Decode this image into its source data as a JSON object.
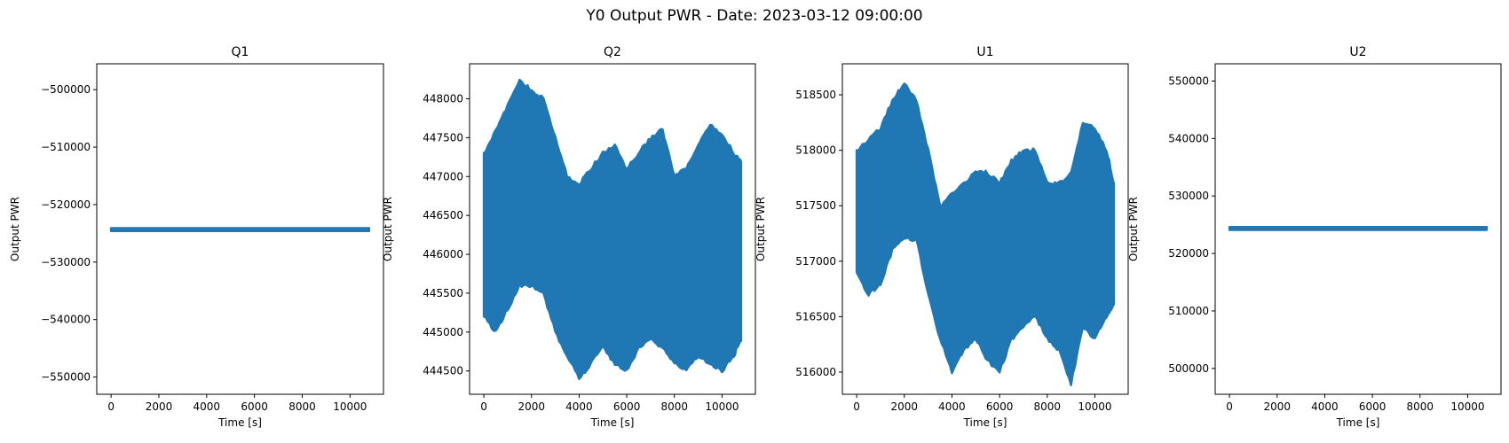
{
  "figure": {
    "title": "Y0 Output PWR - Date: 2023-03-12 09:00:00"
  },
  "colors": {
    "series": "#1f77b4",
    "axis": "#000000",
    "background": "#ffffff"
  },
  "chart_data": [
    {
      "type": "scatter",
      "title": "Q1",
      "xlabel": "Time [s]",
      "ylabel": "Output PWR",
      "marker": "star",
      "xlim": [
        -600,
        11400
      ],
      "ylim": [
        -553000,
        -495500
      ],
      "xticks": [
        0,
        2000,
        4000,
        6000,
        8000,
        10000
      ],
      "yticks": [
        -550000,
        -540000,
        -530000,
        -520000,
        -510000,
        -500000
      ],
      "series": [
        {
          "x": [
            0,
            10800
          ],
          "low": [
            -524600,
            -524600
          ],
          "high": [
            -524100,
            -524100
          ]
        }
      ]
    },
    {
      "type": "scatter",
      "title": "Q2",
      "xlabel": "Time [s]",
      "ylabel": "Output PWR",
      "marker": "star",
      "xlim": [
        -600,
        11400
      ],
      "ylim": [
        444200,
        448450
      ],
      "xticks": [
        0,
        2000,
        4000,
        6000,
        8000,
        10000
      ],
      "yticks": [
        444500,
        445000,
        445500,
        446000,
        446500,
        447000,
        447500,
        448000
      ],
      "series": [
        {
          "x": [
            0,
            500,
            1000,
            1500,
            2000,
            2500,
            3000,
            3500,
            4000,
            4500,
            5000,
            5500,
            6000,
            6500,
            7000,
            7500,
            8000,
            8500,
            9000,
            9500,
            10000,
            10500,
            10800
          ],
          "high": [
            447300,
            447600,
            447900,
            448250,
            448100,
            448000,
            447500,
            447000,
            446900,
            447100,
            447300,
            447400,
            447100,
            447300,
            447500,
            447600,
            447000,
            447100,
            447400,
            447650,
            447550,
            447300,
            447200
          ],
          "low": [
            445200,
            445000,
            445300,
            445600,
            445600,
            445500,
            445000,
            444700,
            444400,
            444600,
            444800,
            444600,
            444500,
            444800,
            444900,
            444800,
            444600,
            444500,
            444700,
            444600,
            444500,
            444700,
            444900
          ]
        }
      ]
    },
    {
      "type": "scatter",
      "title": "U1",
      "xlabel": "Time [s]",
      "ylabel": "Output PWR",
      "marker": "star",
      "xlim": [
        -600,
        11400
      ],
      "ylim": [
        515800,
        518780
      ],
      "xticks": [
        0,
        2000,
        4000,
        6000,
        8000,
        10000
      ],
      "yticks": [
        516000,
        516500,
        517000,
        517500,
        518000,
        518500
      ],
      "series": [
        {
          "x": [
            0,
            500,
            1000,
            1500,
            2000,
            2500,
            3000,
            3500,
            4000,
            4500,
            5000,
            5500,
            6000,
            6500,
            7000,
            7500,
            8000,
            8500,
            9000,
            9500,
            10000,
            10500,
            10800
          ],
          "high": [
            518000,
            518100,
            518200,
            518450,
            518600,
            518450,
            518000,
            517500,
            517600,
            517700,
            517800,
            517800,
            517700,
            517900,
            518000,
            518000,
            517700,
            517700,
            517800,
            518250,
            518200,
            518000,
            517700
          ],
          "low": [
            516900,
            516700,
            516800,
            517100,
            517200,
            517200,
            516700,
            516300,
            516000,
            516200,
            516300,
            516100,
            516000,
            516300,
            516400,
            516500,
            516300,
            516200,
            515900,
            516400,
            516300,
            516500,
            516600
          ]
        }
      ]
    },
    {
      "type": "scatter",
      "title": "U2",
      "xlabel": "Time [s]",
      "ylabel": "Output PWR",
      "marker": "star",
      "xlim": [
        -600,
        11400
      ],
      "ylim": [
        495500,
        553000
      ],
      "xticks": [
        0,
        2000,
        4000,
        6000,
        8000,
        10000
      ],
      "yticks": [
        500000,
        510000,
        520000,
        530000,
        540000,
        550000
      ],
      "series": [
        {
          "x": [
            0,
            10800
          ],
          "low": [
            524100,
            524100
          ],
          "high": [
            524600,
            524600
          ]
        }
      ]
    }
  ]
}
